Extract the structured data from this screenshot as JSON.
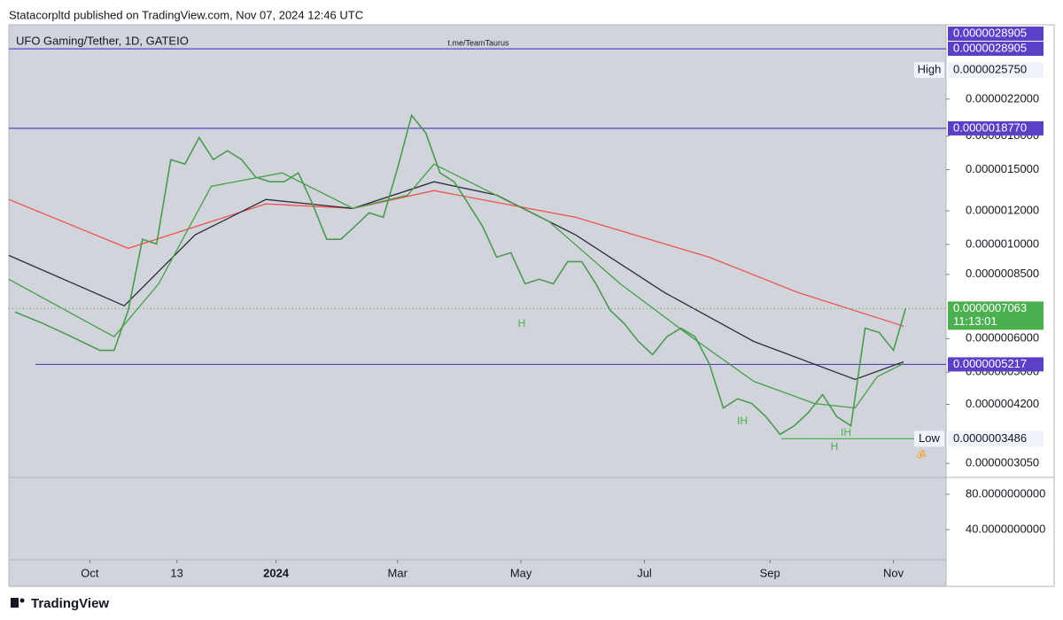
{
  "header": {
    "text": "Statacorpltd published on TradingView.com, Nov 07, 2024 12:46 UTC"
  },
  "footer": {
    "brand": "TradingView"
  },
  "chart_data": {
    "type": "line",
    "title": "UFO Gaming/Tether, 1D, GATEIO",
    "watermark": "t.me/TeamTaurus",
    "log_scale": true,
    "grid": false,
    "color": "#4a9a52",
    "x": [
      "2023-08-25",
      "2023-09-08",
      "2023-09-22",
      "2023-10-06",
      "2023-10-13",
      "2023-10-20",
      "2023-10-27",
      "2023-11-03",
      "2023-11-10",
      "2023-11-17",
      "2023-11-24",
      "2023-12-01",
      "2023-12-08",
      "2023-12-15",
      "2023-12-22",
      "2023-12-29",
      "2024-01-05",
      "2024-01-12",
      "2024-01-19",
      "2024-01-26",
      "2024-02-02",
      "2024-02-09",
      "2024-02-16",
      "2024-02-23",
      "2024-03-01",
      "2024-03-08",
      "2024-03-15",
      "2024-03-22",
      "2024-03-29",
      "2024-04-05",
      "2024-04-12",
      "2024-04-19",
      "2024-04-26",
      "2024-05-03",
      "2024-05-10",
      "2024-05-17",
      "2024-05-24",
      "2024-05-31",
      "2024-06-07",
      "2024-06-14",
      "2024-06-21",
      "2024-06-28",
      "2024-07-05",
      "2024-07-12",
      "2024-07-19",
      "2024-07-26",
      "2024-08-02",
      "2024-08-09",
      "2024-08-16",
      "2024-08-23",
      "2024-08-30",
      "2024-09-06",
      "2024-09-13",
      "2024-09-20",
      "2024-09-27",
      "2024-10-04",
      "2024-10-11",
      "2024-10-18",
      "2024-10-25",
      "2024-11-01",
      "2024-11-07"
    ],
    "values": [
      6.93e-07,
      6.51e-07,
      6.06e-07,
      5.63e-07,
      5.63e-07,
      7e-07,
      1.028e-06,
      1.003e-06,
      1.584e-06,
      1.546e-06,
      1.786e-06,
      1.584e-06,
      1.662e-06,
      1.584e-06,
      1.439e-06,
      1.405e-06,
      1.405e-06,
      1.474e-06,
      1.246e-06,
      1.028e-06,
      1.028e-06,
      1.104e-06,
      1.187e-06,
      1.159e-06,
      1.51e-06,
      2.014e-06,
      1.83e-06,
      1.474e-06,
      1.405e-06,
      1.246e-06,
      1.104e-06,
      9.33e-07,
      9.56e-07,
      8.08e-07,
      8.28e-07,
      8.08e-07,
      9.11e-07,
      9.11e-07,
      8.08e-07,
      7e-07,
      6.51e-07,
      5.91e-07,
      5.5e-07,
      6.06e-07,
      6.35e-07,
      6.06e-07,
      5.24e-07,
      4.12e-07,
      4.33e-07,
      4.22e-07,
      3.93e-07,
      3.57e-07,
      3.74e-07,
      4.02e-07,
      4.43e-07,
      3.93e-07,
      3.74e-07,
      6.35e-07,
      6.2e-07,
      5.63e-07,
      7.063e-07
    ],
    "series": [
      {
        "color": "#ef5350",
        "x": [
          "2023-08-22",
          "2023-10-20",
          "2023-12-27",
          "2024-02-08",
          "2024-03-19",
          "2024-05-28",
          "2024-08-02",
          "2024-09-15",
          "2024-11-06"
        ],
        "values": [
          1.276e-06,
          9.79e-07,
          1.246e-06,
          1.216e-06,
          1.339e-06,
          1.159e-06,
          9.33e-07,
          7.7e-07,
          6.42e-07
        ]
      },
      {
        "color": "#2a2e39",
        "x": [
          "2023-08-22",
          "2023-10-18",
          "2023-11-22",
          "2023-12-27",
          "2024-02-08",
          "2024-03-19",
          "2024-04-19",
          "2024-05-28",
          "2024-07-11",
          "2024-08-24",
          "2024-10-13",
          "2024-11-06"
        ],
        "values": [
          9.42e-07,
          7.17e-07,
          1.053e-06,
          1.276e-06,
          1.216e-06,
          1.405e-06,
          1.307e-06,
          1.053e-06,
          7.7e-07,
          5.91e-07,
          4.81e-07,
          5.29e-07
        ]
      },
      {
        "color": "#43a047",
        "x": [
          "2023-08-22",
          "2023-10-13",
          "2023-11-04",
          "2023-11-30",
          "2024-01-04",
          "2024-02-08",
          "2024-03-06",
          "2024-03-19",
          "2024-04-10",
          "2024-05-15",
          "2024-06-19",
          "2024-07-24",
          "2024-08-24",
          "2024-09-23",
          "2024-10-13",
          "2024-10-24",
          "2024-11-06"
        ],
        "values": [
          8.28e-07,
          6.06e-07,
          8.08e-07,
          1.371e-06,
          1.474e-06,
          1.216e-06,
          1.307e-06,
          1.546e-06,
          1.371e-06,
          1.131e-06,
          8.08e-07,
          6.06e-07,
          4.76e-07,
          4.22e-07,
          4.12e-07,
          4.88e-07,
          5.24e-07
        ]
      }
    ],
    "xlim": [
      "2023-08-22",
      "2024-11-27"
    ],
    "xticks": [
      {
        "value": "2023-10-01",
        "label": "Oct"
      },
      {
        "value": "2023-11-13",
        "label": "13"
      },
      {
        "value": "2024-01-01",
        "label": "2024"
      },
      {
        "value": "2024-03-01",
        "label": "Mar"
      },
      {
        "value": "2024-05-01",
        "label": "May"
      },
      {
        "value": "2024-07-01",
        "label": "Jul"
      },
      {
        "value": "2024-09-01",
        "label": "Sep"
      },
      {
        "value": "2024-11-01",
        "label": "Nov"
      }
    ],
    "ylim": [
      2.84e-07,
      3.26e-06
    ],
    "yticks": [
      {
        "value": 2.2e-06,
        "label": "0.0000022000"
      },
      {
        "value": 1.8e-06,
        "label": "0.0000018000"
      },
      {
        "value": 1.5e-06,
        "label": "0.0000015000"
      },
      {
        "value": 1.2e-06,
        "label": "0.0000012000"
      },
      {
        "value": 1e-06,
        "label": "0.0000010000"
      },
      {
        "value": 8.5e-07,
        "label": "0.0000008500"
      },
      {
        "value": 6e-07,
        "label": "0.0000006000"
      },
      {
        "value": 5e-07,
        "label": "0.0000005000"
      },
      {
        "value": 4.2e-07,
        "label": "0.0000004200"
      },
      {
        "value": 3.05e-07,
        "label": "0.0000003050"
      }
    ],
    "levels": [
      {
        "value": 2.8905e-06,
        "label": "0.0000028905"
      },
      {
        "value": 2.8905e-06,
        "label": "0.0000028905"
      },
      {
        "value": 1.877e-06,
        "label": "0.0000018770"
      },
      {
        "value": 5.217e-07,
        "label": "0.0000005217"
      }
    ],
    "level_color": "#5b3fc4",
    "high": {
      "label": "High",
      "value": 2.575e-06,
      "value_label": "0.0000025750"
    },
    "low": {
      "label": "Low",
      "value": 3.486e-07,
      "value_label": "0.0000003486",
      "color": "#4caf50"
    },
    "last": {
      "value": 7.063e-07,
      "value_label": "0.0000007063",
      "countdown": "11:13:01",
      "color": "#4caf50"
    },
    "annotations": [
      {
        "text": "H"
      },
      {
        "text": "IH"
      },
      {
        "text": "IH"
      },
      {
        "text": "H"
      },
      {
        "text": "ॐ"
      }
    ],
    "pane2": {
      "ylim": [
        6,
        98
      ],
      "yticks": [
        {
          "value": 80,
          "label": "80.0000000000"
        },
        {
          "value": 40,
          "label": "40.0000000000"
        }
      ]
    }
  }
}
